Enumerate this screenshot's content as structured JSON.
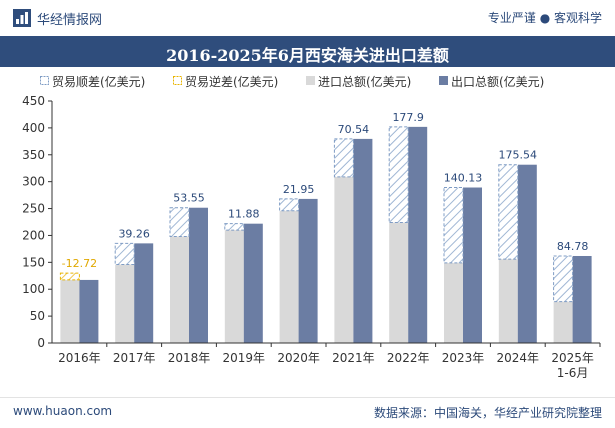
{
  "header": {
    "brand": "华经情报网",
    "tagline": "专业严谨 ● 客观科学",
    "title": "2016-2025年6月西安海关进出口差额"
  },
  "legend": {
    "surplus": "贸易顺差(亿美元)",
    "deficit": "贸易逆差(亿美元)",
    "import": "进口总额(亿美元)",
    "export": "出口总额(亿美元)"
  },
  "footer": {
    "website": "www.huaon.com",
    "source": "数据来源：中国海关，华经产业研究院整理"
  },
  "colors": {
    "import": "#d9d9d9",
    "export": "#6b7da3",
    "surplus_hatch": "#9fb6d4",
    "deficit_hatch": "#f1c850",
    "label_blue": "#2c4a7a",
    "label_gold": "#e0a800",
    "title_bar": "#2f4d7c"
  },
  "chart_data": {
    "type": "bar",
    "categories": [
      "2016年",
      "2017年",
      "2018年",
      "2019年",
      "2020年",
      "2021年",
      "2022年",
      "2023年",
      "2024年",
      "2025年\n1-6月"
    ],
    "series": [
      {
        "name": "进口总额(亿美元)",
        "values": [
          130,
          146,
          198,
          210,
          246,
          309,
          224,
          149,
          156,
          77
        ]
      },
      {
        "name": "出口总额(亿美元)",
        "values": [
          117.28,
          185.26,
          251.55,
          221.88,
          267.95,
          379.54,
          401.9,
          289.13,
          331.54,
          161.78
        ]
      }
    ],
    "balance": [
      -12.72,
      39.26,
      53.55,
      11.88,
      21.95,
      70.54,
      177.9,
      140.13,
      175.54,
      84.78
    ],
    "balance_labels": [
      "-12.72",
      "39.26",
      "53.55",
      "11.88",
      "21.95",
      "70.54",
      "177.9",
      "140.13",
      "175.54",
      "84.78"
    ],
    "ylim": [
      0,
      450
    ],
    "yticks": [
      "0",
      "50",
      "100",
      "150",
      "200",
      "250",
      "300",
      "350",
      "400",
      "450"
    ],
    "ytick_values": [
      0,
      50,
      100,
      150,
      200,
      250,
      300,
      350,
      400,
      450
    ],
    "legend_position": "top-left",
    "grid": false
  }
}
